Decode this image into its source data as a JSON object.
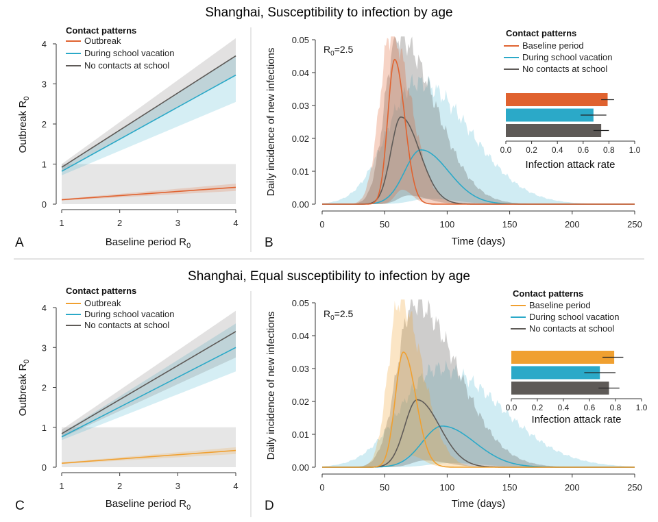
{
  "colors": {
    "baseline_s1": "#e0622f",
    "baseline_s2": "#f0a030",
    "vacation": "#2ba9c8",
    "noschool": "#5e5a57",
    "threshold_band": "#e6e6e6"
  },
  "section1": {
    "title": "Shanghai, Susceptibility to infection by age",
    "panel_a": {
      "letter": "A",
      "xlabel": "Baseline period R",
      "xlabel_sub": "0",
      "ylabel": "Outbreak R",
      "ylabel_sub": "0",
      "legend_title": "Contact patterns",
      "legend": [
        "Outbreak",
        "During school vacation",
        "No contacts at school"
      ]
    },
    "panel_b": {
      "letter": "B",
      "xlabel": "Time (days)",
      "ylabel": "Daily incidence of new infections",
      "r0_label": "R",
      "r0_sub": "0",
      "r0_value": "=2.5",
      "legend_title": "Contact patterns",
      "legend": [
        "Baseline period",
        "During school vacation",
        "No contacts at school"
      ],
      "inset_xlabel": "Infection attack rate"
    }
  },
  "section2": {
    "title": "Shanghai, Equal susceptibility to infection by age",
    "panel_c": {
      "letter": "C",
      "xlabel": "Baseline period R",
      "xlabel_sub": "0",
      "ylabel": "Outbreak R",
      "ylabel_sub": "0",
      "legend_title": "Contact patterns",
      "legend": [
        "Outbreak",
        "During school vacation",
        "No contacts at school"
      ]
    },
    "panel_d": {
      "letter": "D",
      "xlabel": "Time (days)",
      "ylabel": "Daily incidence of new infections",
      "r0_label": "R",
      "r0_sub": "0",
      "r0_value": "=2.5",
      "legend_title": "Contact patterns",
      "legend": [
        "Baseline period",
        "During school vacation",
        "No contacts at school"
      ],
      "inset_xlabel": "Infection attack rate"
    }
  },
  "chart_data": [
    {
      "panel": "A",
      "type": "line",
      "title": "Shanghai, Susceptibility to infection by age",
      "xlabel": "Baseline period R0",
      "ylabel": "Outbreak R0",
      "xlim": [
        1,
        4
      ],
      "ylim": [
        0,
        4
      ],
      "x_ticks": [
        1,
        2,
        3,
        4
      ],
      "y_ticks": [
        0,
        1,
        2,
        3,
        4
      ],
      "threshold_band": [
        0,
        1
      ],
      "series": [
        {
          "name": "Outbreak",
          "color_key": "baseline_s1",
          "x": [
            1,
            4
          ],
          "y": [
            0.11,
            0.42
          ],
          "lower": [
            0.09,
            0.33
          ],
          "upper": [
            0.13,
            0.51
          ]
        },
        {
          "name": "During school vacation",
          "color_key": "vacation",
          "x": [
            1,
            4
          ],
          "y": [
            0.82,
            3.22
          ],
          "lower": [
            0.72,
            2.55
          ],
          "upper": [
            0.92,
            3.72
          ]
        },
        {
          "name": "No contacts at school",
          "color_key": "noschool",
          "x": [
            1,
            4
          ],
          "y": [
            0.92,
            3.7
          ],
          "lower": [
            0.82,
            3.22
          ],
          "upper": [
            1.0,
            4.14
          ]
        }
      ]
    },
    {
      "panel": "B",
      "type": "line",
      "title": "Shanghai, Susceptibility to infection by age",
      "xlabel": "Time (days)",
      "ylabel": "Daily incidence of new infections",
      "xlim": [
        0,
        250
      ],
      "ylim": [
        0,
        0.05
      ],
      "x_ticks": [
        0,
        50,
        100,
        150,
        200,
        250
      ],
      "y_ticks": [
        "0.00",
        "0.01",
        "0.02",
        "0.03",
        "0.04",
        "0.05"
      ],
      "series": [
        {
          "name": "Baseline period",
          "color_key": "baseline_s1",
          "peak_day": 58,
          "peak": 0.044,
          "sigma_left": 5.5,
          "sigma_right": 8,
          "band_peak": 0.052,
          "band_left": 9,
          "band_right": 16
        },
        {
          "name": "During school vacation",
          "color_key": "vacation",
          "peak_day": 79,
          "peak": 0.0165,
          "sigma_left": 13,
          "sigma_right": 22,
          "band_peak": 0.037,
          "band_left": 24,
          "band_right": 42
        },
        {
          "name": "No contacts at school",
          "color_key": "noschool",
          "peak_day": 63,
          "peak": 0.0265,
          "sigma_left": 8,
          "sigma_right": 15,
          "band_peak": 0.051,
          "band_left": 10,
          "band_right": 30
        }
      ],
      "inset": {
        "type": "bar",
        "orientation": "horizontal",
        "xlabel": "Infection attack rate",
        "xlim": [
          0,
          1
        ],
        "x_ticks": [
          "0.0",
          "0.2",
          "0.4",
          "0.6",
          "0.8",
          "1.0"
        ],
        "bars": [
          {
            "name": "Baseline period",
            "color_key": "baseline_s1",
            "value": 0.79,
            "err_low": 0.74,
            "err_high": 0.84
          },
          {
            "name": "During school vacation",
            "color_key": "vacation",
            "value": 0.68,
            "err_low": 0.58,
            "err_high": 0.78
          },
          {
            "name": "No contacts at school",
            "color_key": "noschool",
            "value": 0.74,
            "err_low": 0.68,
            "err_high": 0.8
          }
        ]
      }
    },
    {
      "panel": "C",
      "type": "line",
      "title": "Shanghai, Equal susceptibility to infection by age",
      "xlabel": "Baseline period R0",
      "ylabel": "Outbreak R0",
      "xlim": [
        1,
        4
      ],
      "ylim": [
        0,
        4
      ],
      "x_ticks": [
        1,
        2,
        3,
        4
      ],
      "y_ticks": [
        0,
        1,
        2,
        3,
        4
      ],
      "threshold_band": [
        0,
        1
      ],
      "series": [
        {
          "name": "Outbreak",
          "color_key": "baseline_s2",
          "x": [
            1,
            4
          ],
          "y": [
            0.1,
            0.42
          ],
          "lower": [
            0.08,
            0.33
          ],
          "upper": [
            0.12,
            0.5
          ]
        },
        {
          "name": "During school vacation",
          "color_key": "vacation",
          "x": [
            1,
            4
          ],
          "y": [
            0.76,
            3.0
          ],
          "lower": [
            0.68,
            2.4
          ],
          "upper": [
            0.86,
            3.6
          ]
        },
        {
          "name": "No contacts at school",
          "color_key": "noschool",
          "x": [
            1,
            4
          ],
          "y": [
            0.84,
            3.4
          ],
          "lower": [
            0.74,
            2.75
          ],
          "upper": [
            0.94,
            3.92
          ]
        }
      ]
    },
    {
      "panel": "D",
      "type": "line",
      "title": "Shanghai, Equal susceptibility to infection by age",
      "xlabel": "Time (days)",
      "ylabel": "Daily incidence of new infections",
      "xlim": [
        0,
        250
      ],
      "ylim": [
        0,
        0.05
      ],
      "x_ticks": [
        0,
        50,
        100,
        150,
        200,
        250
      ],
      "y_ticks": [
        "0.00",
        "0.01",
        "0.02",
        "0.03",
        "0.04",
        "0.05"
      ],
      "series": [
        {
          "name": "Baseline period",
          "color_key": "baseline_s2",
          "peak_day": 65,
          "peak": 0.035,
          "sigma_left": 6.5,
          "sigma_right": 10,
          "band_peak": 0.051,
          "band_left": 9,
          "band_right": 18
        },
        {
          "name": "During school vacation",
          "color_key": "vacation",
          "peak_day": 96,
          "peak": 0.0125,
          "sigma_left": 16,
          "sigma_right": 26,
          "band_peak": 0.03,
          "band_left": 30,
          "band_right": 50
        },
        {
          "name": "No contacts at school",
          "color_key": "noschool",
          "peak_day": 76,
          "peak": 0.0205,
          "sigma_left": 10,
          "sigma_right": 18,
          "band_peak": 0.05,
          "band_left": 13,
          "band_right": 35
        }
      ],
      "inset": {
        "type": "bar",
        "orientation": "horizontal",
        "xlabel": "Infection attack rate",
        "xlim": [
          0,
          1
        ],
        "x_ticks": [
          "0.0",
          "0.2",
          "0.4",
          "0.6",
          "0.8",
          "1.0"
        ],
        "bars": [
          {
            "name": "Baseline period",
            "color_key": "baseline_s2",
            "value": 0.79,
            "err_low": 0.7,
            "err_high": 0.86
          },
          {
            "name": "During school vacation",
            "color_key": "vacation",
            "value": 0.68,
            "err_low": 0.56,
            "err_high": 0.8
          },
          {
            "name": "No contacts at school",
            "color_key": "noschool",
            "value": 0.75,
            "err_low": 0.67,
            "err_high": 0.83
          }
        ]
      }
    }
  ]
}
